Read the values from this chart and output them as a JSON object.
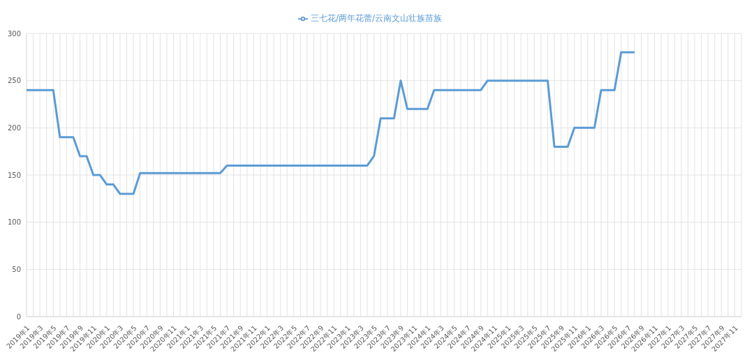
{
  "chart_data": {
    "type": "line",
    "categories": [
      "2019年1",
      null,
      "2019年3",
      null,
      "2019年5",
      null,
      "2019年7",
      null,
      "2019年9",
      null,
      "2019年11",
      null,
      "2020年1",
      null,
      "2020年3",
      null,
      "2020年5",
      null,
      "2020年7",
      null,
      "2020年9",
      null,
      "2020年11",
      null,
      "2021年1",
      null,
      "2021年3",
      null,
      "2021年5",
      null,
      "2021年7",
      null,
      "2021年9",
      null,
      "2021年11",
      null,
      "2022年1",
      null,
      "2022年3",
      null,
      "2022年5",
      null,
      "2022年7",
      null,
      "2022年9",
      null,
      "2022年11",
      null,
      "2023年1",
      null,
      "2023年3",
      null,
      "2023年5",
      null,
      "2023年7",
      null,
      "2023年9",
      null,
      "2023年11",
      null,
      "2024年1",
      null,
      "2024年3",
      null,
      "2024年5",
      null,
      "2024年7",
      null,
      "2024年9",
      null,
      "2024年11",
      null,
      "2025年1",
      null,
      "2025年3",
      null,
      "2025年5",
      null,
      "2025年7",
      null,
      "2025年9",
      null,
      "2025年11",
      null,
      "2026年1",
      null,
      "2026年3",
      null,
      "2026年5",
      null,
      "2026年7",
      null,
      "2026年9",
      null,
      "2026年11",
      null,
      "2027年1",
      null,
      "2027年3",
      null,
      "2027年5",
      null,
      "2027年7",
      null,
      "2027年9",
      null,
      "2027年11",
      null
    ],
    "series": [
      {
        "name": "三七花/两年花蕾/云南文山壮族苗族",
        "color": "#5b9bd5",
        "values": [
          240,
          240,
          240,
          240,
          240,
          190,
          190,
          190,
          170,
          170,
          150,
          150,
          140,
          140,
          130,
          130,
          130,
          152,
          152,
          152,
          152,
          152,
          152,
          152,
          152,
          152,
          152,
          152,
          152,
          152,
          160,
          160,
          160,
          160,
          160,
          160,
          160,
          160,
          160,
          160,
          160,
          160,
          160,
          160,
          160,
          160,
          160,
          160,
          160,
          160,
          160,
          160,
          170,
          210,
          210,
          210,
          250,
          220,
          220,
          220,
          220,
          240,
          240,
          240,
          240,
          240,
          240,
          240,
          240,
          250,
          250,
          250,
          250,
          250,
          250,
          250,
          250,
          250,
          250,
          180,
          180,
          180,
          200,
          200,
          200,
          200,
          240,
          240,
          240,
          280,
          280,
          280,
          null,
          null,
          null,
          null,
          null,
          null,
          null,
          null,
          null,
          null,
          null,
          null,
          null,
          null,
          null,
          null
        ]
      }
    ],
    "ylim": [
      0,
      300
    ],
    "yticks": [
      0,
      50,
      100,
      150,
      200,
      250,
      300
    ],
    "grid": true,
    "legend": "top",
    "marker": "none",
    "line_style": "solid"
  }
}
